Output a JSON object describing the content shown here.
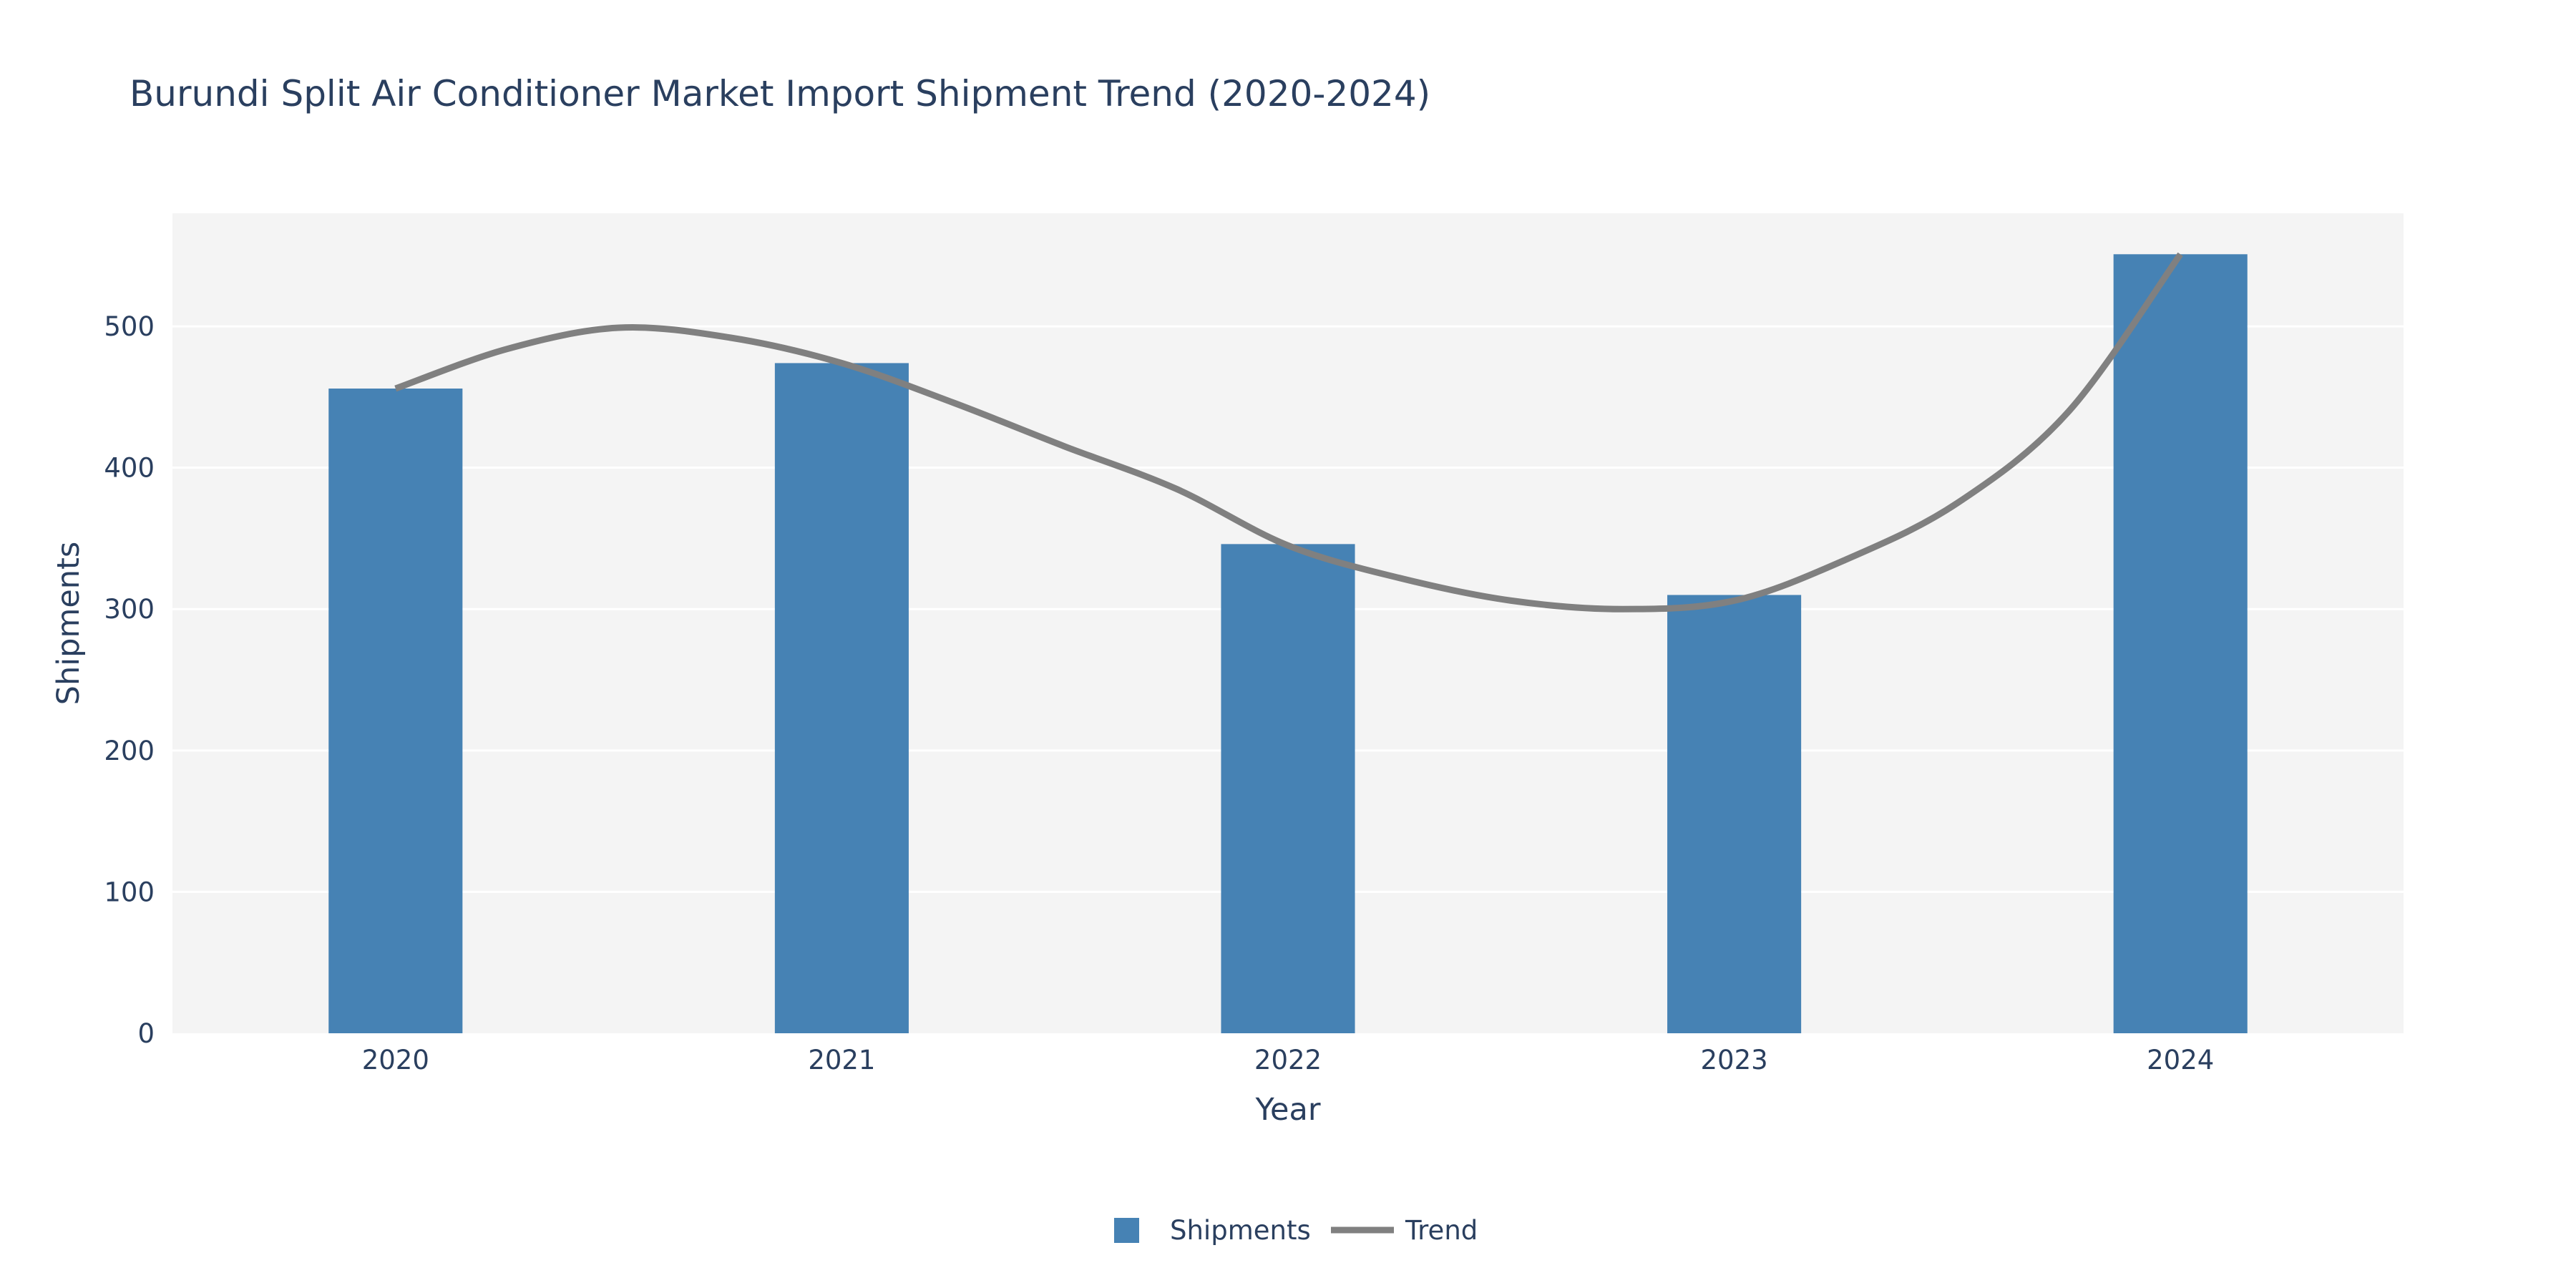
{
  "chart_data": {
    "type": "bar",
    "title": "Burundi Split Air Conditioner Market Import Shipment Trend (2020-2024)",
    "xlabel": "Year",
    "ylabel": "Shipments",
    "categories": [
      "2020",
      "2021",
      "2022",
      "2023",
      "2024"
    ],
    "xlim": [
      2019.5,
      2024.5
    ],
    "ylim": [
      0,
      580
    ],
    "yticks": [
      0,
      100,
      200,
      300,
      400,
      500
    ],
    "grid": true,
    "legend_position": "bottom-center",
    "series": [
      {
        "name": "Shipments",
        "type": "bar",
        "color": "#4682b4",
        "x": [
          2020,
          2021,
          2022,
          2023,
          2024
        ],
        "values": [
          456,
          474,
          346,
          310,
          551
        ]
      },
      {
        "name": "Trend",
        "type": "line",
        "color": "#808080",
        "x": [
          2020,
          2020.25,
          2020.5,
          2020.75,
          2021,
          2021.25,
          2021.5,
          2021.75,
          2022,
          2022.25,
          2022.5,
          2022.75,
          2023,
          2023.25,
          2023.5,
          2023.75,
          2024
        ],
        "values": [
          456,
          484,
          499,
          492,
          474,
          446,
          415,
          385,
          345,
          322,
          306,
          300,
          306,
          335,
          375,
          440,
          551
        ]
      }
    ],
    "colors": {
      "plot_background": "#f4f4f4",
      "grid": "#ffffff",
      "text": "#2a3f5f"
    }
  }
}
